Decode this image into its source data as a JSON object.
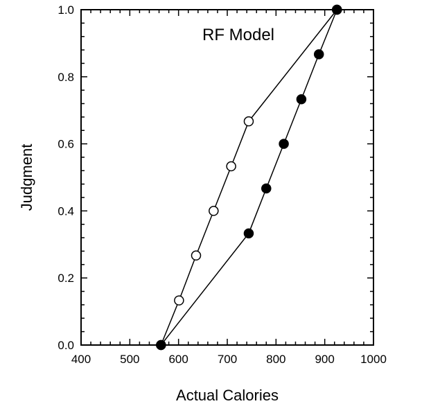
{
  "chart_data": {
    "type": "scatter",
    "title": "RF Model",
    "xlabel": "Actual Calories",
    "ylabel": "Judgment",
    "xlim": [
      400,
      1000
    ],
    "ylim": [
      0,
      1
    ],
    "xticks": [
      "400",
      "500",
      "600",
      "700",
      "800",
      "900",
      "1000"
    ],
    "yticks": [
      "0.0",
      "0.2",
      "0.4",
      "0.6",
      "0.8",
      "1.0"
    ],
    "grid": false,
    "legend": "none",
    "series": [
      {
        "marker": "open-circle",
        "color": "#000000",
        "points": [
          {
            "x": 564,
            "y": 0.0
          },
          {
            "x": 601,
            "y": 0.133
          },
          {
            "x": 636,
            "y": 0.267
          },
          {
            "x": 672,
            "y": 0.4
          },
          {
            "x": 708,
            "y": 0.533
          },
          {
            "x": 744,
            "y": 0.667
          },
          {
            "x": 925,
            "y": 1.0
          }
        ]
      },
      {
        "marker": "filled-circle",
        "color": "#000000",
        "points": [
          {
            "x": 564,
            "y": 0.0
          },
          {
            "x": 744,
            "y": 0.333
          },
          {
            "x": 780,
            "y": 0.467
          },
          {
            "x": 816,
            "y": 0.6
          },
          {
            "x": 852,
            "y": 0.733
          },
          {
            "x": 888,
            "y": 0.867
          },
          {
            "x": 925,
            "y": 1.0
          }
        ]
      }
    ]
  }
}
